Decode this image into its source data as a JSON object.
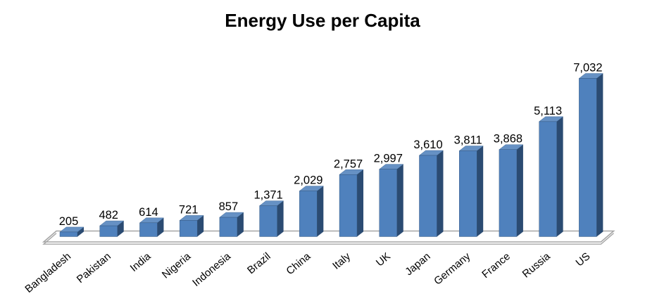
{
  "chart_data": {
    "type": "bar",
    "style": "3d-clustered-column",
    "title": "Energy Use per Capita",
    "xlabel": "",
    "ylabel": "",
    "categories": [
      "Bangladesh",
      "Pakistan",
      "India",
      "Nigeria",
      "Indonesia",
      "Brazil",
      "China",
      "Italy",
      "UK",
      "Japan",
      "Germany",
      "France",
      "Russia",
      "US"
    ],
    "values": [
      205,
      482,
      614,
      721,
      857,
      1371,
      2029,
      2757,
      2997,
      3610,
      3811,
      3868,
      5113,
      7032
    ],
    "value_labels": [
      "205",
      "482",
      "614",
      "721",
      "857",
      "1,371",
      "2,029",
      "2,757",
      "2,997",
      "3,610",
      "3,811",
      "3,868",
      "5,113",
      "7,032"
    ],
    "ylim": [
      0,
      7032
    ],
    "grid": false,
    "legend": "none",
    "x_label_rotation_deg": -40,
    "colors": {
      "bar_front": "#4F81BD",
      "bar_top": "#6691C4",
      "bar_side": "#2B4B72",
      "bar_edge": "#3F6A9A",
      "floor_stroke": "#A6A6A6",
      "text": "#000000",
      "background": "#FFFFFF"
    }
  }
}
